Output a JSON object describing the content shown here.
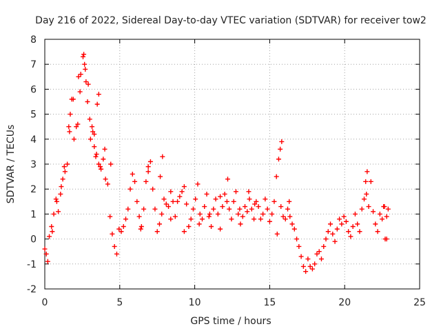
{
  "chart_data": {
    "type": "scatter",
    "title": "Day 216 of 2022, Sidereal Day-to-day VTEC variation (SDTVAR) for receiver tow2",
    "xlabel": "GPS time / hours",
    "ylabel": "SDTVAR / TECUs",
    "xlim": [
      0,
      25
    ],
    "ylim": [
      -2,
      8
    ],
    "xticks": [
      0,
      5,
      10,
      15,
      20,
      25
    ],
    "yticks": [
      -2,
      -1,
      0,
      1,
      2,
      3,
      4,
      5,
      6,
      7,
      8
    ],
    "grid": true,
    "marker": "plus",
    "series": [
      {
        "name": "SDTVAR",
        "color": "#ff0000",
        "x": [
          0.0,
          0.1,
          0.2,
          0.3,
          0.45,
          0.6,
          0.75,
          0.9,
          1.05,
          1.2,
          1.35,
          1.5,
          1.65,
          1.8,
          1.95,
          2.1,
          2.25,
          2.4,
          2.55,
          2.7,
          2.85,
          3.0,
          3.15,
          3.3,
          3.45,
          3.6,
          3.75,
          3.9,
          4.05,
          4.2,
          4.35,
          4.5,
          4.65,
          4.8,
          4.95,
          5.1,
          5.25,
          5.4,
          5.55,
          5.7,
          5.85,
          6.0,
          6.15,
          6.3,
          6.45,
          6.6,
          6.75,
          6.9,
          7.05,
          7.2,
          7.35,
          7.5,
          7.65,
          7.8,
          7.95,
          8.1,
          8.25,
          8.4,
          8.55,
          8.7,
          8.85,
          9.0,
          9.15,
          9.3,
          9.45,
          9.6,
          9.75,
          9.9,
          10.05,
          10.2,
          10.35,
          10.5,
          10.65,
          10.8,
          10.95,
          11.1,
          11.25,
          11.4,
          11.55,
          11.7,
          11.85,
          12.0,
          12.15,
          12.3,
          12.45,
          12.6,
          12.75,
          12.9,
          13.05,
          13.2,
          13.35,
          13.5,
          13.65,
          13.8,
          13.95,
          14.1,
          14.25,
          14.4,
          14.55,
          14.7,
          14.85,
          15.0,
          15.15,
          15.3,
          15.45,
          15.6,
          15.75,
          15.9,
          16.05,
          16.2,
          16.35,
          16.5,
          16.65,
          16.8,
          16.95,
          17.1,
          17.25,
          17.4,
          17.55,
          17.7,
          17.85,
          18.0,
          18.15,
          18.3,
          18.45,
          18.6,
          18.75,
          18.9,
          19.05,
          19.2,
          19.35,
          19.5,
          19.65,
          19.8,
          19.95,
          20.1,
          20.25,
          20.4,
          20.55,
          20.7,
          20.85,
          21.0,
          21.15,
          21.3,
          21.45,
          21.6,
          21.75,
          21.9,
          22.05,
          22.2,
          22.35,
          22.5,
          22.65,
          22.8,
          22.9,
          2.6,
          2.65,
          2.75,
          1.6,
          1.7,
          1.9,
          3.2,
          3.3,
          3.5,
          3.6,
          0.5,
          0.8,
          1.1,
          1.3,
          2.2,
          2.35,
          2.9,
          3.05,
          3.4,
          3.7,
          4.0,
          4.4,
          6.4,
          6.9,
          7.7,
          7.85,
          8.4,
          9.3,
          10.3,
          11.0,
          11.7,
          12.2,
          13.0,
          13.6,
          14.0,
          15.5,
          15.7,
          15.8,
          16.3,
          21.5,
          21.4,
          22.6,
          22.7,
          22.8
        ],
        "y": [
          -0.4,
          -0.6,
          -0.9,
          0.1,
          0.5,
          1.0,
          1.6,
          1.1,
          1.8,
          2.4,
          2.7,
          3.0,
          4.3,
          5.6,
          4.0,
          4.5,
          6.5,
          6.6,
          7.3,
          6.8,
          5.5,
          4.8,
          4.5,
          4.2,
          3.4,
          3.0,
          2.8,
          3.2,
          2.4,
          2.2,
          0.9,
          0.2,
          -0.3,
          -0.6,
          0.4,
          0.3,
          0.5,
          0.8,
          1.2,
          2.0,
          2.6,
          2.3,
          1.5,
          0.9,
          0.5,
          1.2,
          2.3,
          2.9,
          3.1,
          2.0,
          1.2,
          0.3,
          0.6,
          1.0,
          1.6,
          1.4,
          1.3,
          1.9,
          1.5,
          0.9,
          1.5,
          1.7,
          1.9,
          2.1,
          1.4,
          0.5,
          0.8,
          1.2,
          1.6,
          2.2,
          1.0,
          0.8,
          1.3,
          1.8,
          0.9,
          0.5,
          1.2,
          1.6,
          1.0,
          0.4,
          1.3,
          1.8,
          1.5,
          1.2,
          0.8,
          1.5,
          1.9,
          1.0,
          0.6,
          0.9,
          1.3,
          1.1,
          1.6,
          1.2,
          0.8,
          1.5,
          1.3,
          0.8,
          1.0,
          1.6,
          1.2,
          0.7,
          1.0,
          1.5,
          2.5,
          3.2,
          1.3,
          0.9,
          0.8,
          1.2,
          0.9,
          0.6,
          0.4,
          0.0,
          -0.3,
          -0.7,
          -1.1,
          -1.3,
          -0.8,
          -1.1,
          -1.2,
          -1.0,
          -0.6,
          -0.5,
          -0.8,
          -0.3,
          0.0,
          0.3,
          0.6,
          0.2,
          -0.1,
          0.4,
          0.8,
          0.6,
          0.9,
          0.7,
          0.3,
          0.1,
          0.5,
          1.0,
          0.6,
          0.3,
          1.2,
          1.6,
          1.8,
          1.3,
          2.3,
          1.1,
          0.6,
          0.3,
          1.0,
          0.8,
          1.3,
          0.9,
          1.2,
          7.4,
          7.0,
          6.3,
          4.5,
          5.0,
          5.6,
          4.3,
          3.7,
          5.4,
          5.8,
          0.3,
          1.5,
          2.1,
          2.9,
          4.6,
          5.9,
          6.2,
          4.0,
          3.3,
          2.9,
          3.6,
          3.0,
          0.4,
          2.7,
          2.5,
          3.3,
          0.8,
          0.3,
          0.6,
          1.0,
          1.7,
          2.4,
          1.2,
          1.9,
          1.4,
          0.2,
          3.6,
          3.9,
          1.5,
          2.7,
          2.3,
          1.3,
          0.0,
          0.0
        ]
      }
    ]
  }
}
